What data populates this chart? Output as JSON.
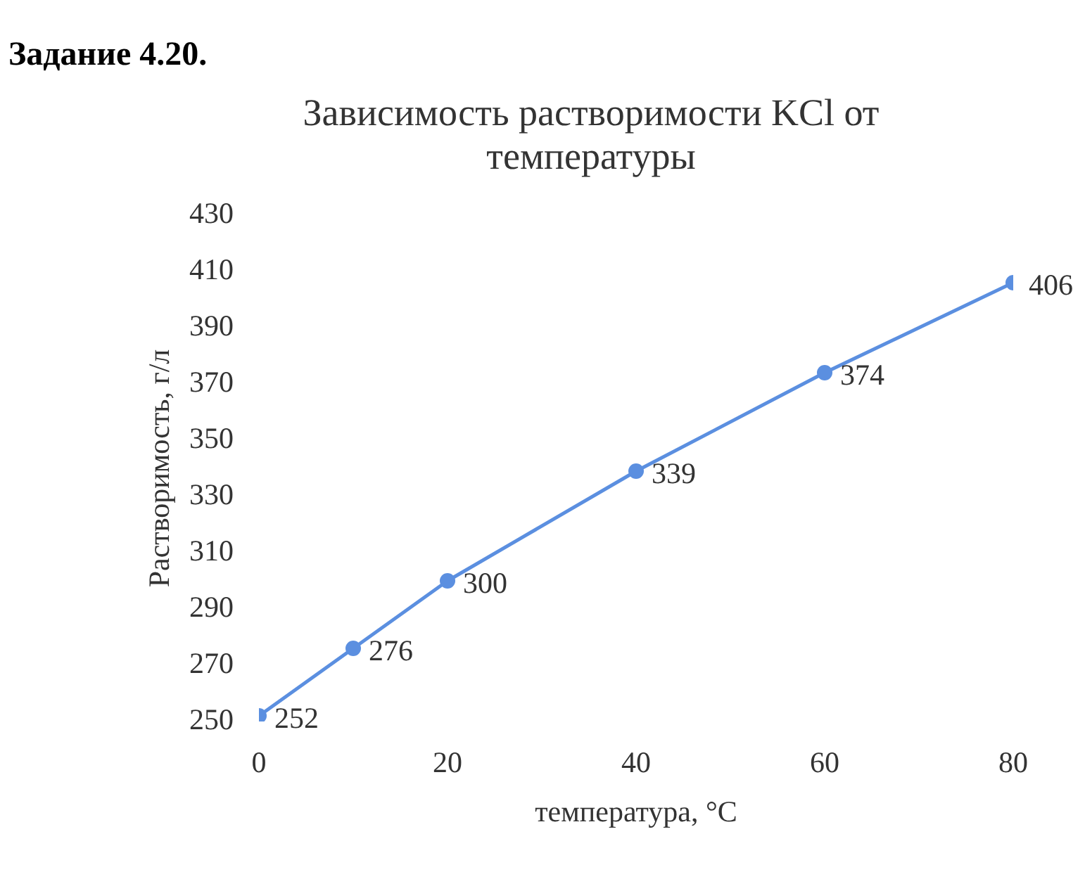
{
  "chart_data": {
    "type": "line",
    "title": "Зависимость растворимости KCl от температуры",
    "xlabel": "температура, °C",
    "ylabel": "Растворимость, г/л",
    "annotations": [
      "Задание 4.20."
    ],
    "x": [
      0,
      10,
      20,
      40,
      60,
      80
    ],
    "series": [
      {
        "color": "#5b8fe0",
        "values": [
          252,
          276,
          300,
          339,
          374,
          406
        ]
      }
    ],
    "xlim": [
      0,
      80
    ],
    "xticks": [
      0,
      20,
      40,
      60,
      80
    ],
    "ylim": [
      250,
      430
    ],
    "yticks": [
      250,
      270,
      290,
      310,
      330,
      350,
      370,
      390,
      410,
      430
    ],
    "marker": "circle",
    "line_style": "solid",
    "data_labels": true
  }
}
